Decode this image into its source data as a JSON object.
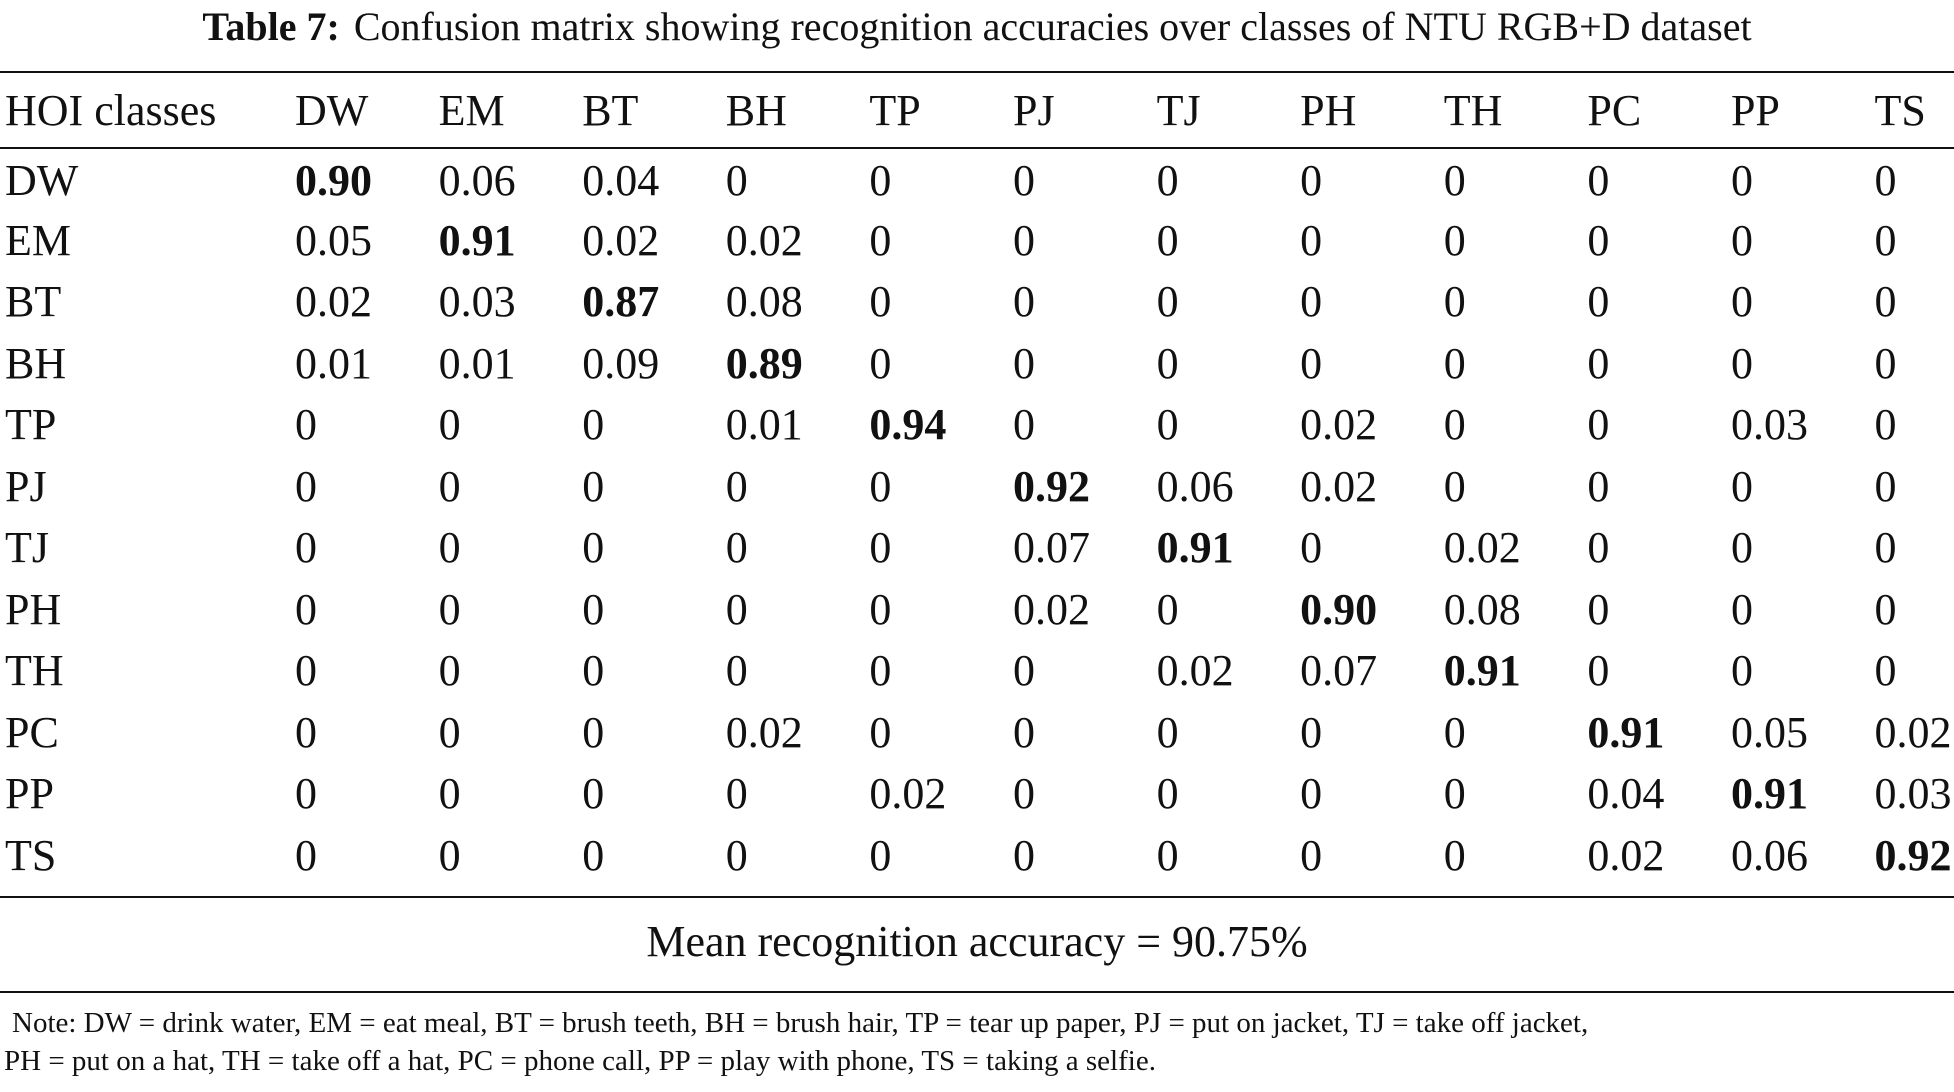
{
  "caption": {
    "label": "Table 7:",
    "text": "Confusion matrix showing recognition accuracies over classes of NTU RGB+D dataset"
  },
  "table": {
    "corner_header": "HOI classes",
    "columns": [
      "DW",
      "EM",
      "BT",
      "BH",
      "TP",
      "PJ",
      "TJ",
      "PH",
      "TH",
      "PC",
      "PP",
      "TS"
    ],
    "rows": [
      {
        "label": "DW",
        "values": [
          "0.90",
          "0.06",
          "0.04",
          "0",
          "0",
          "0",
          "0",
          "0",
          "0",
          "0",
          "0",
          "0"
        ]
      },
      {
        "label": "EM",
        "values": [
          "0.05",
          "0.91",
          "0.02",
          "0.02",
          "0",
          "0",
          "0",
          "0",
          "0",
          "0",
          "0",
          "0"
        ]
      },
      {
        "label": "BT",
        "values": [
          "0.02",
          "0.03",
          "0.87",
          "0.08",
          "0",
          "0",
          "0",
          "0",
          "0",
          "0",
          "0",
          "0"
        ]
      },
      {
        "label": "BH",
        "values": [
          "0.01",
          "0.01",
          "0.09",
          "0.89",
          "0",
          "0",
          "0",
          "0",
          "0",
          "0",
          "0",
          "0"
        ]
      },
      {
        "label": "TP",
        "values": [
          "0",
          "0",
          "0",
          "0.01",
          "0.94",
          "0",
          "0",
          "0.02",
          "0",
          "0",
          "0.03",
          "0"
        ]
      },
      {
        "label": "PJ",
        "values": [
          "0",
          "0",
          "0",
          "0",
          "0",
          "0.92",
          "0.06",
          "0.02",
          "0",
          "0",
          "0",
          "0"
        ]
      },
      {
        "label": "TJ",
        "values": [
          "0",
          "0",
          "0",
          "0",
          "0",
          "0.07",
          "0.91",
          "0",
          "0.02",
          "0",
          "0",
          "0"
        ]
      },
      {
        "label": "PH",
        "values": [
          "0",
          "0",
          "0",
          "0",
          "0",
          "0.02",
          "0",
          "0.90",
          "0.08",
          "0",
          "0",
          "0"
        ]
      },
      {
        "label": "TH",
        "values": [
          "0",
          "0",
          "0",
          "0",
          "0",
          "0",
          "0.02",
          "0.07",
          "0.91",
          "0",
          "0",
          "0"
        ]
      },
      {
        "label": "PC",
        "values": [
          "0",
          "0",
          "0",
          "0.02",
          "0",
          "0",
          "0",
          "0",
          "0",
          "0.91",
          "0.05",
          "0.02"
        ]
      },
      {
        "label": "PP",
        "values": [
          "0",
          "0",
          "0",
          "0",
          "0.02",
          "0",
          "0",
          "0",
          "0",
          "0.04",
          "0.91",
          "0.03"
        ]
      },
      {
        "label": "TS",
        "values": [
          "0",
          "0",
          "0",
          "0",
          "0",
          "0",
          "0",
          "0",
          "0",
          "0.02",
          "0.06",
          "0.92"
        ]
      }
    ]
  },
  "summary": {
    "text": "Mean recognition accuracy = 90.75%"
  },
  "note": {
    "line1": "Note: DW = drink water, EM = eat meal, BT = brush teeth, BH = brush hair, TP = tear up paper, PJ = put on jacket, TJ = take off jacket,",
    "line2": "PH = put on a hat, TH = take off a hat, PC = phone call, PP = play with phone, TS = taking a selfie."
  }
}
